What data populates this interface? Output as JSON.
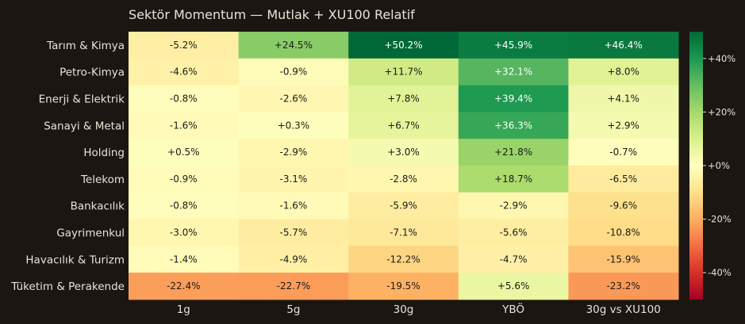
{
  "chart_data": {
    "type": "heatmap",
    "title": "Sektör Momentum — Mutlak + XU100 Relatif",
    "rows": [
      "Tarım & Kimya",
      "Petro-Kimya",
      "Enerji & Elektrik",
      "Sanayi & Metal",
      "Holding",
      "Telekom",
      "Bankacılık",
      "Gayrimenkul",
      "Havacılık & Turizm",
      "Tüketim & Perakende"
    ],
    "columns": [
      "1g",
      "5g",
      "30g",
      "YBÖ",
      "30g vs XU100"
    ],
    "values": [
      [
        -5.2,
        24.5,
        50.2,
        45.9,
        46.4
      ],
      [
        -4.6,
        -0.9,
        11.7,
        32.1,
        8.0
      ],
      [
        -0.8,
        -2.6,
        7.8,
        39.4,
        4.1
      ],
      [
        -1.6,
        0.3,
        6.7,
        36.3,
        2.9
      ],
      [
        0.5,
        -2.9,
        3.0,
        21.8,
        -0.7
      ],
      [
        -0.9,
        -3.1,
        -2.8,
        18.7,
        -6.5
      ],
      [
        -0.8,
        -1.6,
        -5.9,
        -2.9,
        -9.6
      ],
      [
        -3.0,
        -5.7,
        -7.1,
        -5.6,
        -10.8
      ],
      [
        -1.4,
        -4.9,
        -12.2,
        -4.7,
        -15.9
      ],
      [
        -22.4,
        -22.7,
        -19.5,
        5.6,
        -23.2
      ]
    ],
    "labels": [
      [
        "-5.2%",
        "+24.5%",
        "+50.2%",
        "+45.9%",
        "+46.4%"
      ],
      [
        "-4.6%",
        "-0.9%",
        "+11.7%",
        "+32.1%",
        "+8.0%"
      ],
      [
        "-0.8%",
        "-2.6%",
        "+7.8%",
        "+39.4%",
        "+4.1%"
      ],
      [
        "-1.6%",
        "+0.3%",
        "+6.7%",
        "+36.3%",
        "+2.9%"
      ],
      [
        "+0.5%",
        "-2.9%",
        "+3.0%",
        "+21.8%",
        "-0.7%"
      ],
      [
        "-0.9%",
        "-3.1%",
        "-2.8%",
        "+18.7%",
        "-6.5%"
      ],
      [
        "-0.8%",
        "-1.6%",
        "-5.9%",
        "-2.9%",
        "-9.6%"
      ],
      [
        "-3.0%",
        "-5.7%",
        "-7.1%",
        "-5.6%",
        "-10.8%"
      ],
      [
        "-1.4%",
        "-4.9%",
        "-12.2%",
        "-4.7%",
        "-15.9%"
      ],
      [
        "-22.4%",
        "-22.7%",
        "-19.5%",
        "+5.6%",
        "-23.2%"
      ]
    ],
    "colorscale": "RdYlGn",
    "vmin": -50,
    "vmax": 50,
    "colorbar_ticks": [
      {
        "value": 40,
        "label": "+40%"
      },
      {
        "value": 20,
        "label": "+20%"
      },
      {
        "value": 0,
        "label": "+0%"
      },
      {
        "value": -20,
        "label": "-20%"
      },
      {
        "value": -40,
        "label": "-40%"
      }
    ],
    "colorbar_position": "right"
  }
}
